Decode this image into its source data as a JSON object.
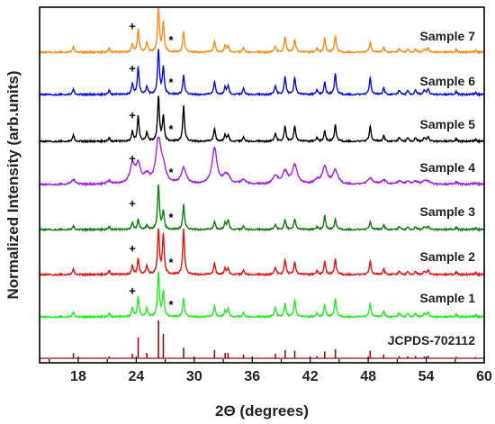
{
  "chart_data": {
    "type": "line",
    "title": "",
    "xlabel": "2Θ  (degrees)",
    "ylabel": "Normalized Intensity (arb.units)",
    "xlim": [
      14,
      60
    ],
    "x_ticks": [
      18,
      24,
      30,
      36,
      42,
      48,
      54,
      60
    ],
    "grid": false,
    "markers": {
      "plus": "+",
      "star": "*"
    },
    "peaks_2theta": [
      17.5,
      21.2,
      23.6,
      24.2,
      25.1,
      26.3,
      26.8,
      28.9,
      32.1,
      33.2,
      33.5,
      35.1,
      38.4,
      39.4,
      40.4,
      42.7,
      43.5,
      44.6,
      48.2,
      49.6,
      51.2,
      52.1,
      52.9,
      53.8,
      54.2,
      57.1,
      59.1
    ],
    "series": [
      {
        "name": "Sample 7",
        "color": "#ff8c1a",
        "intensities": [
          0.12,
          0.08,
          0.16,
          0.5,
          0.22,
          1.0,
          0.65,
          0.45,
          0.25,
          0.14,
          0.12,
          0.1,
          0.14,
          0.34,
          0.28,
          0.08,
          0.3,
          0.36,
          0.22,
          0.1,
          0.07,
          0.06,
          0.07,
          0.06,
          0.09,
          0.05,
          0.04
        ],
        "width": 0.11
      },
      {
        "name": "Sample 6",
        "color": "#0a0ae6",
        "intensities": [
          0.12,
          0.09,
          0.22,
          0.6,
          0.18,
          1.0,
          0.6,
          0.42,
          0.28,
          0.16,
          0.18,
          0.14,
          0.2,
          0.4,
          0.38,
          0.1,
          0.26,
          0.46,
          0.38,
          0.14,
          0.09,
          0.08,
          0.1,
          0.09,
          0.12,
          0.06,
          0.04
        ],
        "width": 0.11
      },
      {
        "name": "Sample 5",
        "color": "#000000",
        "intensities": [
          0.14,
          0.07,
          0.2,
          0.55,
          0.2,
          1.0,
          0.55,
          0.78,
          0.28,
          0.14,
          0.12,
          0.1,
          0.18,
          0.34,
          0.34,
          0.08,
          0.22,
          0.36,
          0.34,
          0.12,
          0.08,
          0.07,
          0.08,
          0.07,
          0.1,
          0.05,
          0.04
        ],
        "width": 0.11
      },
      {
        "name": "Sample 4",
        "color": "#a020f0",
        "intensities": [
          0.1,
          0.07,
          0.4,
          0.4,
          0.18,
          1.0,
          0.3,
          0.35,
          0.8,
          0.14,
          0.12,
          0.1,
          0.18,
          0.28,
          0.42,
          0.08,
          0.38,
          0.3,
          0.14,
          0.09,
          0.06,
          0.05,
          0.06,
          0.05,
          0.06,
          0.04,
          0.03
        ],
        "width": 0.3
      },
      {
        "name": "Sample 3",
        "color": "#0f7d0f",
        "intensities": [
          0.08,
          0.06,
          0.14,
          0.22,
          0.1,
          1.0,
          0.4,
          0.55,
          0.18,
          0.15,
          0.2,
          0.08,
          0.12,
          0.22,
          0.24,
          0.06,
          0.3,
          0.22,
          0.18,
          0.1,
          0.06,
          0.05,
          0.06,
          0.05,
          0.07,
          0.04,
          0.03
        ],
        "width": 0.11
      },
      {
        "name": "Sample 2",
        "color": "#e81010",
        "intensities": [
          0.12,
          0.08,
          0.18,
          0.34,
          0.2,
          1.0,
          0.88,
          1.0,
          0.25,
          0.14,
          0.12,
          0.1,
          0.16,
          0.34,
          0.28,
          0.08,
          0.28,
          0.34,
          0.3,
          0.12,
          0.07,
          0.06,
          0.07,
          0.06,
          0.1,
          0.05,
          0.04
        ],
        "width": 0.11
      },
      {
        "name": "Sample 1",
        "color": "#22ee22",
        "intensities": [
          0.1,
          0.07,
          0.18,
          0.44,
          0.2,
          1.0,
          0.55,
          0.4,
          0.24,
          0.14,
          0.16,
          0.1,
          0.22,
          0.3,
          0.38,
          0.08,
          0.26,
          0.4,
          0.3,
          0.12,
          0.08,
          0.07,
          0.08,
          0.07,
          0.1,
          0.05,
          0.04
        ],
        "width": 0.11
      },
      {
        "name": "JCPDS-702112",
        "color": "#8b0f14",
        "type": "stick",
        "intensities": [
          0.14,
          0.05,
          0.12,
          0.55,
          0.14,
          1.0,
          0.65,
          0.28,
          0.22,
          0.14,
          0.14,
          0.1,
          0.12,
          0.22,
          0.2,
          0.06,
          0.18,
          0.24,
          0.2,
          0.1,
          0.06,
          0.05,
          0.06,
          0.05,
          0.07,
          0.04,
          0.03
        ]
      }
    ]
  }
}
